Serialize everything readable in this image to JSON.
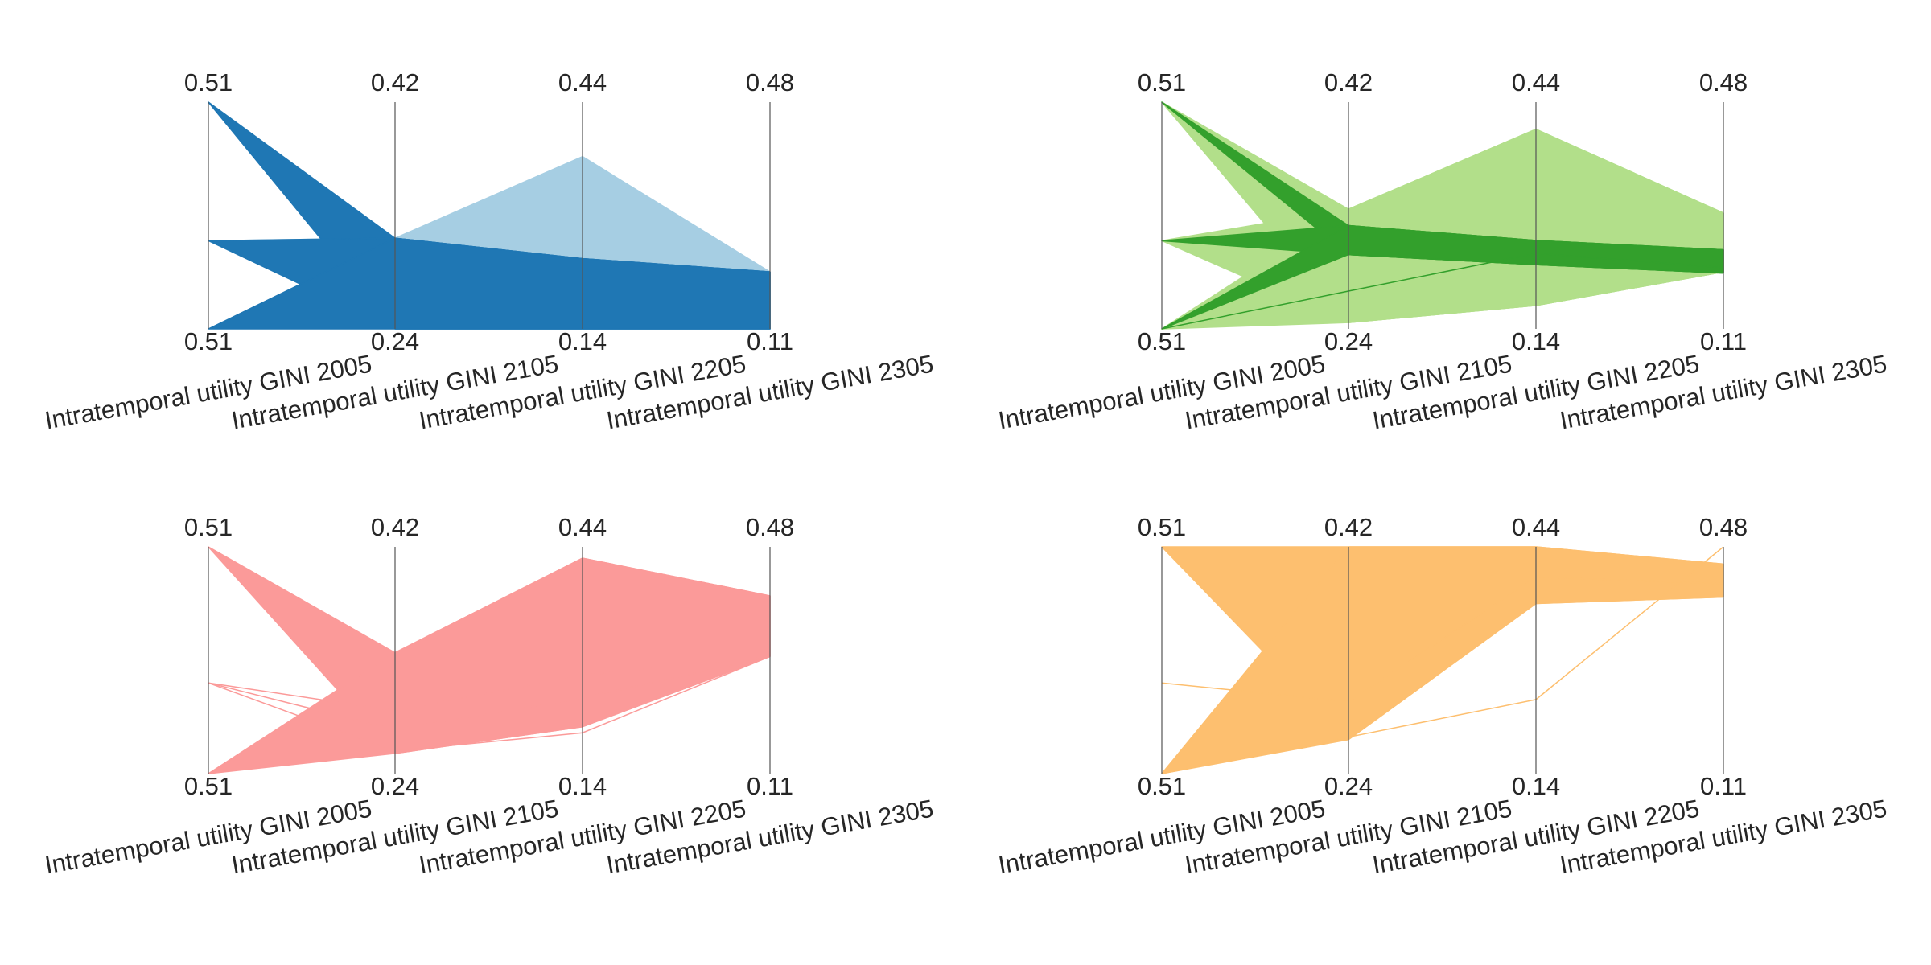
{
  "chart_data": [
    {
      "type": "parallel",
      "axes": [
        {
          "label": "Intratemporal utility GINI 2005",
          "ylim": [
            0.505,
            0.514
          ],
          "yticks": [
            {
              "value": 0.505,
              "label": "0.51"
            },
            {
              "value": 0.514,
              "label": "0.51"
            }
          ]
        },
        {
          "label": "Intratemporal utility GINI 2105",
          "ylim": [
            0.24,
            0.42
          ],
          "yticks": [
            0.24,
            0.42
          ]
        },
        {
          "label": "Intratemporal utility GINI 2205",
          "ylim": [
            0.14,
            0.44
          ],
          "yticks": [
            0.14,
            0.44
          ]
        },
        {
          "label": "Intratemporal utility GINI 2305",
          "ylim": [
            0.11,
            0.48
          ],
          "yticks": [
            0.11,
            0.48
          ]
        }
      ],
      "bands": [
        {
          "color": "#a6cee3",
          "upper": [
            0.5085,
            0.312,
            0.368,
            0.203
          ],
          "lower": [
            0.5085,
            0.296,
            0.233,
            0.203
          ]
        },
        {
          "color": "#1f77b4",
          "upper": [
            0.514,
            0.312,
            0.233,
            0.203
          ],
          "lower": [
            0.514,
            0.24,
            0.14,
            0.11
          ]
        },
        {
          "color": "#1f77b4",
          "upper": [
            0.5085,
            0.312,
            0.233,
            0.203
          ],
          "lower": [
            0.5085,
            0.24,
            0.14,
            0.11
          ]
        },
        {
          "color": "#1f77b4",
          "upper": [
            0.505,
            0.312,
            0.233,
            0.203
          ],
          "lower": [
            0.505,
            0.24,
            0.14,
            0.11
          ]
        }
      ],
      "lines": []
    },
    {
      "type": "parallel",
      "axes": [
        {
          "label": "Intratemporal utility GINI 2005",
          "ylim": [
            0.505,
            0.514
          ],
          "yticks": [
            {
              "value": 0.505,
              "label": "0.51"
            },
            {
              "value": 0.514,
              "label": "0.51"
            }
          ]
        },
        {
          "label": "Intratemporal utility GINI 2105",
          "ylim": [
            0.24,
            0.42
          ],
          "yticks": [
            0.24,
            0.42
          ]
        },
        {
          "label": "Intratemporal utility GINI 2205",
          "ylim": [
            0.14,
            0.44
          ],
          "yticks": [
            0.14,
            0.44
          ]
        },
        {
          "label": "Intratemporal utility GINI 2305",
          "ylim": [
            0.11,
            0.48
          ],
          "yticks": [
            0.11,
            0.48
          ]
        }
      ],
      "bands": [
        {
          "color": "#b2df8a",
          "upper": [
            0.514,
            0.335,
            0.404,
            0.299
          ],
          "lower": [
            0.514,
            0.245,
            0.171,
            0.203
          ]
        },
        {
          "color": "#b2df8a",
          "upper": [
            0.5085,
            0.335,
            0.404,
            0.299
          ],
          "lower": [
            0.5085,
            0.245,
            0.171,
            0.203
          ]
        },
        {
          "color": "#b2df8a",
          "upper": [
            0.505,
            0.335,
            0.404,
            0.299
          ],
          "lower": [
            0.505,
            0.245,
            0.171,
            0.203
          ]
        },
        {
          "color": "#33a02c",
          "upper": [
            0.514,
            0.322,
            0.257,
            0.239
          ],
          "lower": [
            0.514,
            0.299,
            0.225,
            0.201
          ]
        },
        {
          "color": "#33a02c",
          "upper": [
            0.5085,
            0.322,
            0.257,
            0.239
          ],
          "lower": [
            0.5085,
            0.299,
            0.225,
            0.201
          ]
        },
        {
          "color": "#33a02c",
          "upper": [
            0.505,
            0.322,
            0.257,
            0.239
          ],
          "lower": [
            0.505,
            0.299,
            0.225,
            0.201
          ]
        }
      ],
      "lines": [
        {
          "color": "#33a02c",
          "values": [
            0.505,
            0.27,
            0.24,
            0.21
          ]
        }
      ]
    },
    {
      "type": "parallel",
      "axes": [
        {
          "label": "Intratemporal utility GINI 2005",
          "ylim": [
            0.505,
            0.514
          ],
          "yticks": [
            {
              "value": 0.505,
              "label": "0.51"
            },
            {
              "value": 0.514,
              "label": "0.51"
            }
          ]
        },
        {
          "label": "Intratemporal utility GINI 2105",
          "ylim": [
            0.24,
            0.42
          ],
          "yticks": [
            0.24,
            0.42
          ]
        },
        {
          "label": "Intratemporal utility GINI 2205",
          "ylim": [
            0.14,
            0.44
          ],
          "yticks": [
            0.14,
            0.44
          ]
        },
        {
          "label": "Intratemporal utility GINI 2305",
          "ylim": [
            0.11,
            0.48
          ],
          "yticks": [
            0.11,
            0.48
          ]
        }
      ],
      "bands": [
        {
          "color": "#fb9a99",
          "upper": [
            0.514,
            0.336,
            0.425,
            0.4
          ],
          "lower": [
            0.514,
            0.256,
            0.202,
            0.301
          ]
        },
        {
          "color": "#fb9a99",
          "upper": [
            0.505,
            0.336,
            0.425,
            0.4
          ],
          "lower": [
            0.505,
            0.256,
            0.202,
            0.301
          ]
        }
      ],
      "lines": [
        {
          "color": "#fb9a99",
          "values": [
            0.5086,
            0.29,
            0.27,
            0.301
          ]
        },
        {
          "color": "#fb9a99",
          "values": [
            0.5086,
            0.275,
            0.24,
            0.301
          ]
        },
        {
          "color": "#fb9a99",
          "values": [
            0.5086,
            0.258,
            0.194,
            0.301
          ]
        }
      ]
    },
    {
      "type": "parallel",
      "axes": [
        {
          "label": "Intratemporal utility GINI 2005",
          "ylim": [
            0.505,
            0.514
          ],
          "yticks": [
            {
              "value": 0.505,
              "label": "0.51"
            },
            {
              "value": 0.514,
              "label": "0.51"
            }
          ]
        },
        {
          "label": "Intratemporal utility GINI 2105",
          "ylim": [
            0.24,
            0.42
          ],
          "yticks": [
            0.24,
            0.42
          ]
        },
        {
          "label": "Intratemporal utility GINI 2205",
          "ylim": [
            0.14,
            0.44
          ],
          "yticks": [
            0.14,
            0.44
          ]
        },
        {
          "label": "Intratemporal utility GINI 2305",
          "ylim": [
            0.11,
            0.48
          ],
          "yticks": [
            0.11,
            0.48
          ]
        }
      ],
      "bands": [
        {
          "color": "#fdbf6f",
          "upper": [
            0.514,
            0.42,
            0.44,
            0.452
          ],
          "lower": [
            0.514,
            0.267,
            0.365,
            0.398
          ]
        },
        {
          "color": "#fdbf6f",
          "upper": [
            0.505,
            0.42,
            0.44,
            0.452
          ],
          "lower": [
            0.505,
            0.267,
            0.365,
            0.398
          ]
        }
      ],
      "lines": [
        {
          "color": "#fdbf6f",
          "values": [
            0.505,
            0.269,
            0.238,
            0.48
          ]
        },
        {
          "color": "#fdbf6f",
          "values": [
            0.5086,
            0.297,
            0.4,
            0.42
          ]
        }
      ]
    }
  ]
}
